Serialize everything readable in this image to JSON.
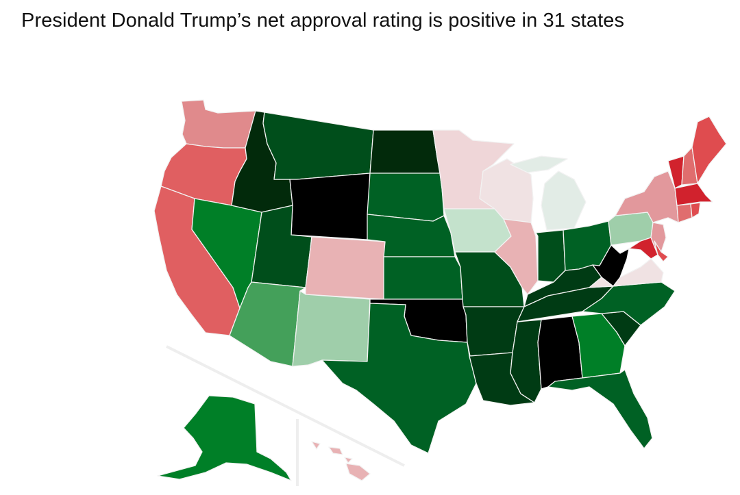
{
  "title": "President Donald Trump’s net approval rating is positive in 31 states",
  "colors": {
    "black": "#000000",
    "darkest_green": "#022a0b",
    "very_dark_green": "#003b14",
    "dark_green": "#004e1b",
    "green": "#006124",
    "bright_green": "#007f27",
    "mid_green": "#44a05a",
    "light_green": "#9fceaa",
    "pale_green": "#c4e2cc",
    "very_pale_green": "#e2ece6",
    "very_pale_pink": "#f0e2e3",
    "pale_pink": "#efd6d8",
    "light_pink": "#e8b2b4",
    "pink": "#e2989c",
    "salmon": "#e08a8c",
    "light_red": "#e06d6e",
    "red_orange": "#e05f61",
    "red": "#df4c4f",
    "dark_red": "#d1222d"
  },
  "states": [
    {
      "id": "WA",
      "color": "salmon"
    },
    {
      "id": "OR",
      "color": "red_orange"
    },
    {
      "id": "CA",
      "color": "red_orange"
    },
    {
      "id": "NV",
      "color": "bright_green"
    },
    {
      "id": "ID",
      "color": "darkest_green"
    },
    {
      "id": "MT",
      "color": "dark_green"
    },
    {
      "id": "WY",
      "color": "black"
    },
    {
      "id": "UT",
      "color": "dark_green"
    },
    {
      "id": "AZ",
      "color": "mid_green"
    },
    {
      "id": "CO",
      "color": "light_pink"
    },
    {
      "id": "NM",
      "color": "light_green"
    },
    {
      "id": "ND",
      "color": "darkest_green"
    },
    {
      "id": "SD",
      "color": "green"
    },
    {
      "id": "NE",
      "color": "green"
    },
    {
      "id": "KS",
      "color": "green"
    },
    {
      "id": "OK",
      "color": "black"
    },
    {
      "id": "TX",
      "color": "green"
    },
    {
      "id": "MN",
      "color": "pale_pink"
    },
    {
      "id": "IA",
      "color": "pale_green"
    },
    {
      "id": "MO",
      "color": "dark_green"
    },
    {
      "id": "AR",
      "color": "very_dark_green"
    },
    {
      "id": "LA",
      "color": "very_dark_green"
    },
    {
      "id": "WI",
      "color": "very_pale_pink"
    },
    {
      "id": "IL",
      "color": "light_pink"
    },
    {
      "id": "MI",
      "color": "very_pale_green"
    },
    {
      "id": "IN",
      "color": "dark_green"
    },
    {
      "id": "OH",
      "color": "green"
    },
    {
      "id": "KY",
      "color": "very_dark_green"
    },
    {
      "id": "TN",
      "color": "very_dark_green"
    },
    {
      "id": "MS",
      "color": "very_dark_green"
    },
    {
      "id": "AL",
      "color": "black"
    },
    {
      "id": "GA",
      "color": "bright_green"
    },
    {
      "id": "FL",
      "color": "green"
    },
    {
      "id": "SC",
      "color": "very_dark_green"
    },
    {
      "id": "NC",
      "color": "green"
    },
    {
      "id": "VA",
      "color": "very_pale_pink"
    },
    {
      "id": "WV",
      "color": "black"
    },
    {
      "id": "PA",
      "color": "light_green"
    },
    {
      "id": "NY",
      "color": "pink"
    },
    {
      "id": "NJ",
      "color": "pink"
    },
    {
      "id": "MD",
      "color": "dark_red"
    },
    {
      "id": "DE",
      "color": "red"
    },
    {
      "id": "VT",
      "color": "dark_red"
    },
    {
      "id": "NH",
      "color": "light_red"
    },
    {
      "id": "ME",
      "color": "red"
    },
    {
      "id": "MA",
      "color": "dark_red"
    },
    {
      "id": "CT",
      "color": "light_red"
    },
    {
      "id": "RI",
      "color": "red"
    },
    {
      "id": "AK",
      "color": "bright_green"
    },
    {
      "id": "HI",
      "color": "light_pink"
    }
  ]
}
